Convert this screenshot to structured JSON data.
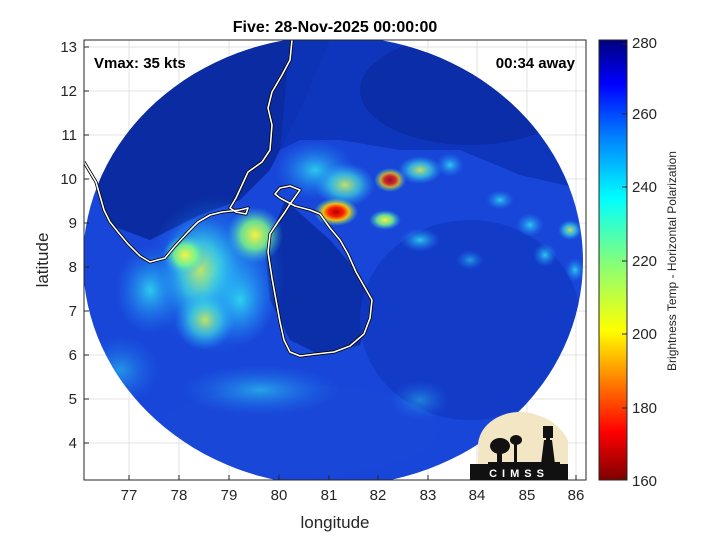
{
  "title": "Five: 28-Nov-2025 00:00:00",
  "vmax_label": "Vmax: 35 kts",
  "time_away_label": "00:34 away",
  "xlabel": "longitude",
  "ylabel": "latitude",
  "x_ticks": [
    "77",
    "78",
    "79",
    "80",
    "81",
    "82",
    "83",
    "84",
    "85",
    "86"
  ],
  "y_ticks": [
    "13",
    "12",
    "11",
    "10",
    "9",
    "8",
    "7",
    "6",
    "5",
    "4"
  ],
  "colorbar": {
    "label": "Brightness Temp - Horizontal Polarization",
    "ticks": [
      "280",
      "260",
      "240",
      "220",
      "200",
      "180",
      "160"
    ],
    "range": [
      160,
      280
    ],
    "colormap": "jet"
  },
  "logo_text": "CIMSS",
  "colors": {
    "coastline": "#ffffff",
    "background_cold": "#0a2a9e",
    "grid": "#d9d9d9"
  }
}
